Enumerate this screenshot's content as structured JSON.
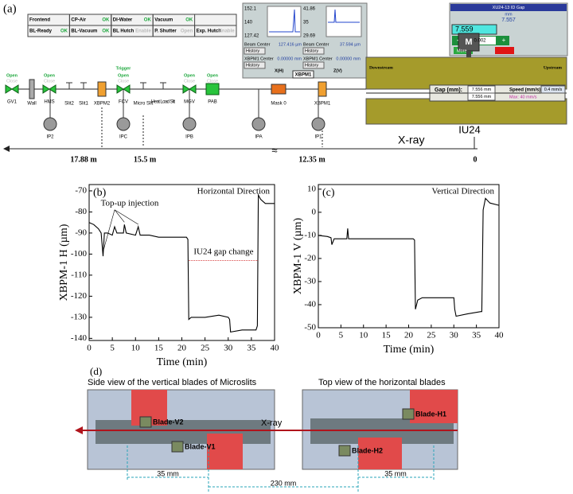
{
  "panel_a": {
    "label": "(a)",
    "status_rows": [
      [
        {
          "name": "Frontend"
        },
        {
          "name": "CP-Air",
          "state": "OK"
        },
        {
          "name": "DI-Water",
          "state": "OK"
        },
        {
          "name": "Vacuum",
          "state": "OK"
        }
      ],
      [
        {
          "name": "BL-Ready",
          "state": "OK"
        },
        {
          "name": "BL-Vacuum",
          "state": "OK"
        },
        {
          "name": "BL Hutch",
          "state": "Enable"
        },
        {
          "name": "P. Shutter",
          "state": "Open"
        },
        {
          "name": "Exp. Hutch",
          "state": "Enable"
        }
      ]
    ],
    "xbpm": {
      "name": "XBPM1",
      "history": "History",
      "beam_center_label": "Beam Center",
      "xbpm_center_label": "XBPM1 Center",
      "plots": [
        {
          "max": "152.1",
          "mid": "140",
          "min": "127.42",
          "beam_center": "127.416 µm",
          "xbpm_center": "0.00000 mm",
          "axis": "X(H)"
        },
        {
          "max": "41.86",
          "mid": "35",
          "min": "29.69",
          "beam_center": "37.594 µm",
          "xbpm_center": "0.00000 mm",
          "axis": "Z(V)"
        }
      ]
    },
    "id_gap": {
      "title": "XU24-13 ID Gap",
      "unit": "mm",
      "readback": "7.557",
      "setpoint": "7.559",
      "step": "0.002",
      "minus": "-",
      "plus": "+",
      "move": "More"
    },
    "undulator": {
      "motor": "M",
      "downstream": "Downstream",
      "upstream": "Upstream",
      "gap_label": "Gap (mm):",
      "gap1": "7.556 mm",
      "gap2": "7.556 mm",
      "speed_label": "Speed (mm/s):",
      "speed": "0.4 mm/s",
      "max": "Max: 40 mm/s"
    },
    "elements": [
      {
        "label": "GV1",
        "open": "Open",
        "close": "Close"
      },
      {
        "label": "Wall"
      },
      {
        "label": "HMS",
        "open": "Open",
        "close": "Close"
      },
      {
        "label": "Slit2"
      },
      {
        "label": "Slit1"
      },
      {
        "label": "XBPM2"
      },
      {
        "label": "FCV",
        "trigger": "Trigger",
        "open": "Open",
        "close": "Close"
      },
      {
        "label": "Micro Slit"
      },
      {
        "label": "Heat Load Slit"
      },
      {
        "label": "MGV",
        "open": "Open",
        "close": "Close"
      },
      {
        "label": "PAB",
        "open": "Open",
        "close": "Close"
      },
      {
        "label": "Mask 0"
      },
      {
        "label": "XBPM1"
      }
    ],
    "ion_pumps": [
      "IP2",
      "IPC",
      "IPB",
      "IPA",
      "IP1"
    ],
    "beam": {
      "xray": "X-ray",
      "source": "IU24",
      "break": "≈",
      "distances": [
        "17.88 m",
        "15.5 m",
        "12.35 m",
        "0"
      ]
    }
  },
  "chart_data": [
    {
      "type": "line",
      "panel_label": "(b)",
      "title": "Horizontal Direction",
      "x_label": "Time (min)",
      "y_label": "XBPM-1 H (µm)",
      "annotations": [
        "Top-up injection",
        "IU24 gap change"
      ],
      "color": "#000000",
      "x": [
        0,
        1,
        2,
        2.6,
        3,
        3.3,
        4,
        5,
        5.5,
        6,
        7.4,
        7.6,
        8,
        10,
        10.6,
        11,
        13,
        15,
        17,
        19,
        21,
        21.3,
        21.5,
        22,
        25,
        28,
        30,
        30.3,
        30.5,
        33,
        36,
        36.3,
        36.5,
        37,
        37.5,
        38,
        40
      ],
      "values": [
        -85,
        -86,
        -88,
        -90,
        -101,
        -90,
        -90,
        -91,
        -87,
        -90,
        -90,
        -86,
        -90,
        -91,
        -87,
        -91,
        -91,
        -92,
        -92,
        -92,
        -92,
        -93,
        -131,
        -130,
        -130,
        -129,
        -130,
        -131,
        -137,
        -136,
        -136,
        -134,
        -72,
        -74,
        -75,
        -76,
        -76
      ],
      "xlim": [
        0,
        40
      ],
      "xticks": [
        0,
        5,
        10,
        15,
        20,
        25,
        30,
        35,
        40
      ],
      "ylim": [
        -141,
        -67
      ],
      "yticks": [
        -70,
        -80,
        -90,
        -100,
        -110,
        -120,
        -130,
        -140
      ]
    },
    {
      "type": "line",
      "panel_label": "(c)",
      "title": "Vertical Direction",
      "x_label": "Time (min)",
      "y_label": "XBPM-1 V (µm)",
      "color": "#000000",
      "x": [
        0,
        2,
        2.8,
        3,
        3.5,
        5,
        6.3,
        6.5,
        6.7,
        10,
        15,
        21,
        21.3,
        21.5,
        22,
        23,
        26,
        30,
        30.2,
        30.5,
        33,
        36,
        36.2,
        36.5,
        37,
        38,
        40
      ],
      "values": [
        -10,
        -10.5,
        -11,
        -14,
        -11.5,
        -11.5,
        -11.5,
        -7,
        -11.5,
        -11.5,
        -11.5,
        -11.5,
        -12,
        -42,
        -38,
        -37,
        -37,
        -37,
        -42,
        -45,
        -44,
        -43,
        -43,
        1,
        6,
        4,
        3
      ],
      "xlim": [
        0,
        40
      ],
      "xticks": [
        0,
        5,
        10,
        15,
        20,
        25,
        30,
        35,
        40
      ],
      "ylim": [
        -50,
        12
      ],
      "yticks": [
        10,
        0,
        -10,
        -20,
        -30,
        -40,
        -50
      ]
    }
  ],
  "panel_d": {
    "label": "(d)",
    "side_title": "Side view of the vertical blades of Microslits",
    "top_title": "Top view of the horizontal blades",
    "blades": [
      "Blade-V2",
      "Blade-V1",
      "Blade-H1",
      "Blade-H2"
    ],
    "xray": "X-ray",
    "dims": [
      "35 mm",
      "230 mm",
      "35 mm"
    ]
  }
}
